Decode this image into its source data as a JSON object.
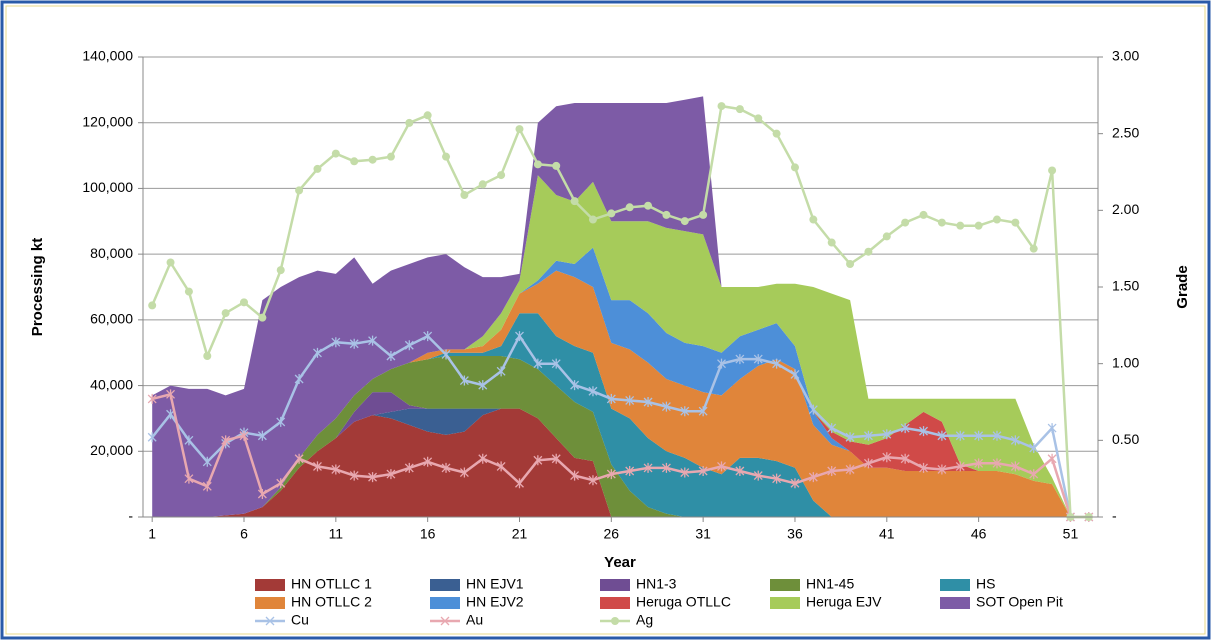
{
  "chart_data": {
    "type": "stacked-area",
    "x_label": "Year",
    "y_label": "Processing kt",
    "y2_label": "Grade",
    "x": [
      1,
      2,
      3,
      4,
      5,
      6,
      7,
      8,
      9,
      10,
      11,
      12,
      13,
      14,
      15,
      16,
      17,
      18,
      19,
      20,
      21,
      22,
      23,
      24,
      25,
      26,
      27,
      28,
      29,
      30,
      31,
      32,
      33,
      34,
      35,
      36,
      37,
      38,
      39,
      40,
      41,
      42,
      43,
      44,
      45,
      46,
      47,
      48,
      49,
      50,
      51,
      52
    ],
    "xlim": [
      0.5,
      52.5
    ],
    "xticks": [
      1,
      6,
      11,
      16,
      21,
      26,
      31,
      36,
      41,
      46,
      51
    ],
    "ylim": [
      0,
      140000
    ],
    "yticks": [
      {
        "value": 0,
        "label": "-"
      },
      {
        "value": 20000,
        "label": "20,000"
      },
      {
        "value": 40000,
        "label": "40,000"
      },
      {
        "value": 60000,
        "label": "60,000"
      },
      {
        "value": 80000,
        "label": "80,000"
      },
      {
        "value": 100000,
        "label": "100,000"
      },
      {
        "value": 120000,
        "label": "120,000"
      },
      {
        "value": 140000,
        "label": "140,000"
      }
    ],
    "y2lim": [
      0,
      3
    ],
    "y2ticks": [
      {
        "value": 0,
        "label": "-"
      },
      {
        "value": 0.5,
        "label": "0.50"
      },
      {
        "value": 1,
        "label": "1.00"
      },
      {
        "value": 1.5,
        "label": "1.50"
      },
      {
        "value": 2,
        "label": "2.00"
      },
      {
        "value": 2.5,
        "label": "2.50"
      },
      {
        "value": 3,
        "label": "3.00"
      }
    ],
    "grid": true,
    "legend": "bottom",
    "series": [
      {
        "name": "HN OTLLC 1",
        "type": "area",
        "color": "#a33a37",
        "values": [
          0,
          0,
          0,
          0,
          500,
          1000,
          3000,
          8000,
          15000,
          20000,
          24000,
          29000,
          31000,
          30000,
          28000,
          26000,
          25000,
          26000,
          31000,
          33000,
          33000,
          30000,
          24000,
          18000,
          17000,
          0,
          0,
          0,
          0,
          0,
          0,
          0,
          0,
          0,
          0,
          0,
          0,
          0,
          0,
          0,
          0,
          0,
          0,
          0,
          0,
          0,
          0,
          0,
          0,
          0,
          0,
          0
        ]
      },
      {
        "name": "HN EJV1",
        "type": "area",
        "color": "#3a5f92",
        "values": [
          0,
          0,
          0,
          0,
          0,
          0,
          0,
          0,
          0,
          0,
          0,
          0,
          0,
          2000,
          5000,
          7000,
          8000,
          7000,
          2000,
          0,
          0,
          0,
          0,
          0,
          0,
          0,
          0,
          0,
          0,
          0,
          0,
          0,
          0,
          0,
          0,
          0,
          0,
          0,
          0,
          0,
          0,
          0,
          0,
          0,
          0,
          0,
          0,
          0,
          0,
          0,
          0,
          0
        ]
      },
      {
        "name": "HN1-3",
        "type": "area",
        "color": "#6f4d93",
        "values": [
          0,
          0,
          0,
          0,
          0,
          0,
          0,
          0,
          0,
          0,
          0,
          3000,
          7000,
          6000,
          1000,
          0,
          0,
          0,
          0,
          0,
          0,
          0,
          0,
          0,
          0,
          0,
          0,
          0,
          0,
          0,
          0,
          0,
          0,
          0,
          0,
          0,
          0,
          0,
          0,
          0,
          0,
          0,
          0,
          0,
          0,
          0,
          0,
          0,
          0,
          0,
          0,
          0
        ]
      },
      {
        "name": "HN1-45",
        "type": "area",
        "color": "#6e8f3a",
        "values": [
          0,
          0,
          0,
          0,
          0,
          0,
          0,
          1000,
          3000,
          5000,
          6000,
          5000,
          4000,
          7000,
          13000,
          15000,
          16000,
          16000,
          16000,
          16000,
          15000,
          15000,
          16000,
          17000,
          15000,
          16000,
          8000,
          3000,
          1000,
          0,
          0,
          0,
          0,
          0,
          0,
          0,
          0,
          0,
          0,
          0,
          0,
          0,
          0,
          0,
          0,
          0,
          0,
          0,
          0,
          0,
          0,
          0
        ]
      },
      {
        "name": "HS",
        "type": "area",
        "color": "#2f8fa6",
        "values": [
          0,
          0,
          0,
          0,
          0,
          0,
          0,
          0,
          0,
          0,
          0,
          0,
          0,
          0,
          0,
          0,
          1000,
          1000,
          1000,
          3000,
          14000,
          17000,
          15000,
          17000,
          18000,
          17000,
          22000,
          21000,
          19000,
          18000,
          15000,
          13000,
          18000,
          18000,
          17000,
          15000,
          5000,
          0,
          0,
          0,
          0,
          0,
          0,
          0,
          0,
          0,
          0,
          0,
          0,
          0,
          0,
          0
        ]
      },
      {
        "name": "HN OTLLC 2",
        "type": "area",
        "color": "#e0853a",
        "values": [
          0,
          0,
          0,
          0,
          0,
          0,
          0,
          0,
          0,
          0,
          0,
          0,
          0,
          0,
          0,
          2000,
          1000,
          1000,
          2000,
          5000,
          6000,
          9000,
          20000,
          21000,
          20000,
          20000,
          21000,
          23000,
          22000,
          22000,
          23000,
          24000,
          24000,
          28000,
          31000,
          30000,
          23000,
          22000,
          20000,
          15000,
          15000,
          14000,
          14000,
          14000,
          14000,
          14000,
          14000,
          13000,
          11000,
          10000,
          0,
          0
        ]
      },
      {
        "name": "HN EJV2",
        "type": "area",
        "color": "#4d8fd8",
        "values": [
          0,
          0,
          0,
          0,
          0,
          0,
          0,
          0,
          0,
          0,
          0,
          0,
          0,
          0,
          0,
          0,
          0,
          0,
          0,
          0,
          0,
          1000,
          3000,
          4000,
          12000,
          13000,
          15000,
          15000,
          14000,
          13000,
          14000,
          13000,
          13000,
          11000,
          11000,
          7000,
          4000,
          2000,
          0,
          0,
          0,
          0,
          0,
          0,
          0,
          0,
          0,
          0,
          0,
          0,
          0,
          0
        ]
      },
      {
        "name": "Heruga OTLLC",
        "type": "area",
        "color": "#d04a48",
        "values": [
          0,
          0,
          0,
          0,
          0,
          0,
          0,
          0,
          0,
          0,
          0,
          0,
          0,
          0,
          0,
          0,
          0,
          0,
          0,
          0,
          0,
          0,
          0,
          0,
          0,
          0,
          0,
          0,
          0,
          0,
          0,
          0,
          0,
          0,
          0,
          0,
          0,
          2000,
          3000,
          7000,
          9000,
          14000,
          18000,
          15000,
          2000,
          0,
          0,
          0,
          0,
          0,
          0,
          0
        ]
      },
      {
        "name": "Heruga EJV",
        "type": "area",
        "color": "#a6cb5a",
        "values": [
          0,
          0,
          0,
          0,
          0,
          0,
          0,
          0,
          0,
          0,
          0,
          0,
          0,
          0,
          0,
          0,
          0,
          0,
          3000,
          5000,
          4000,
          32000,
          20000,
          19000,
          20000,
          24000,
          24000,
          28000,
          32000,
          34000,
          34000,
          20000,
          15000,
          13000,
          12000,
          19000,
          38000,
          42000,
          43000,
          14000,
          12000,
          8000,
          4000,
          7000,
          20000,
          22000,
          22000,
          23000,
          11000,
          2000,
          0,
          0
        ]
      },
      {
        "name": "SOT Open Pit",
        "type": "area",
        "color": "#7d5ba6",
        "values": [
          37000,
          40000,
          39000,
          39000,
          36500,
          38000,
          63000,
          61000,
          55000,
          50000,
          44000,
          42000,
          29000,
          30000,
          30000,
          29000,
          29000,
          25000,
          18000,
          11000,
          2000,
          16000,
          27000,
          30000,
          24000,
          36000,
          36000,
          36000,
          38000,
          40000,
          42000,
          0,
          0,
          0,
          0,
          0,
          0,
          0,
          0,
          0,
          0,
          0,
          0,
          0,
          0,
          0,
          0,
          0,
          0,
          0,
          0,
          0
        ]
      },
      {
        "name": "Cu",
        "type": "line",
        "marker": "x",
        "axis": "y2",
        "color": "#a9c2e6",
        "values": [
          0.52,
          0.67,
          0.5,
          0.36,
          0.48,
          0.55,
          0.53,
          0.62,
          0.9,
          1.07,
          1.14,
          1.13,
          1.15,
          1.05,
          1.12,
          1.18,
          1.06,
          0.89,
          0.86,
          0.95,
          1.18,
          1.0,
          1.0,
          0.86,
          0.82,
          0.77,
          0.76,
          0.75,
          0.72,
          0.69,
          0.69,
          1.0,
          1.03,
          1.03,
          1.0,
          0.93,
          0.7,
          0.58,
          0.52,
          0.53,
          0.54,
          0.58,
          0.56,
          0.53,
          0.53,
          0.53,
          0.53,
          0.5,
          0.45,
          0.58,
          0,
          0
        ]
      },
      {
        "name": "Au",
        "type": "line",
        "marker": "x",
        "axis": "y2",
        "color": "#e8a8b0",
        "values": [
          0.77,
          0.8,
          0.25,
          0.2,
          0.5,
          0.53,
          0.15,
          0.22,
          0.38,
          0.33,
          0.31,
          0.27,
          0.26,
          0.28,
          0.32,
          0.36,
          0.32,
          0.29,
          0.38,
          0.33,
          0.22,
          0.37,
          0.38,
          0.27,
          0.24,
          0.28,
          0.3,
          0.32,
          0.32,
          0.29,
          0.3,
          0.33,
          0.3,
          0.27,
          0.25,
          0.22,
          0.26,
          0.3,
          0.31,
          0.35,
          0.39,
          0.38,
          0.32,
          0.31,
          0.33,
          0.35,
          0.35,
          0.33,
          0.28,
          0.38,
          0,
          0
        ]
      },
      {
        "name": "Ag",
        "type": "line",
        "marker": "circle",
        "axis": "y2",
        "color": "#c4dca8",
        "values": [
          1.38,
          1.66,
          1.47,
          1.05,
          1.33,
          1.4,
          1.3,
          1.61,
          2.13,
          2.27,
          2.37,
          2.32,
          2.33,
          2.35,
          2.57,
          2.62,
          2.35,
          2.1,
          2.17,
          2.23,
          2.53,
          2.3,
          2.29,
          2.06,
          1.94,
          1.98,
          2.02,
          2.03,
          1.97,
          1.93,
          1.97,
          2.68,
          2.66,
          2.6,
          2.5,
          2.28,
          1.94,
          1.79,
          1.65,
          1.73,
          1.83,
          1.92,
          1.97,
          1.92,
          1.9,
          1.9,
          1.94,
          1.92,
          1.75,
          2.26,
          0,
          0
        ]
      }
    ]
  }
}
